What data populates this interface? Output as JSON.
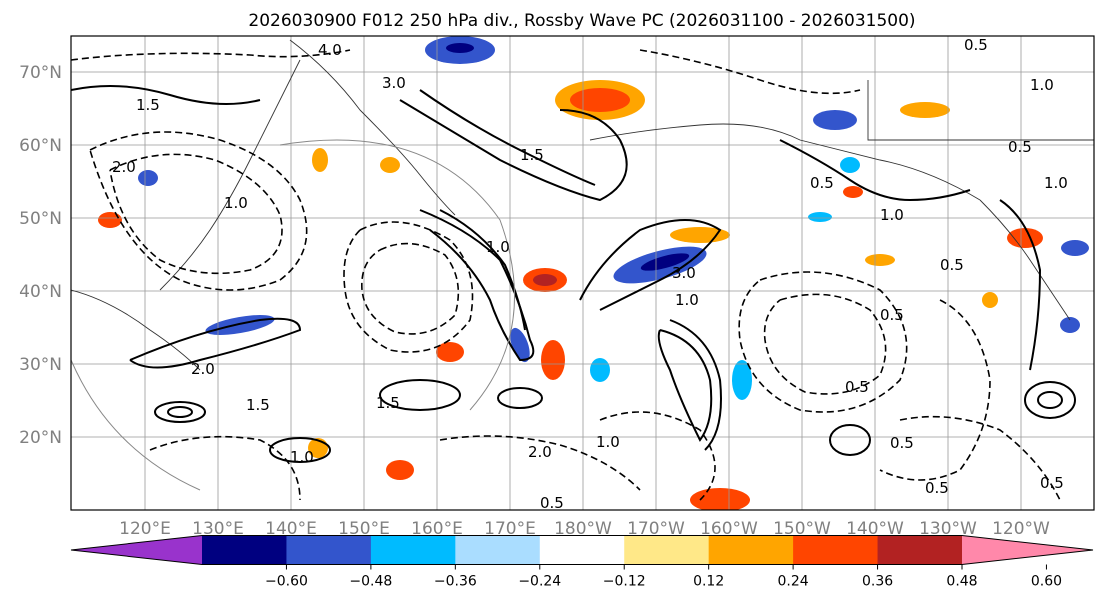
{
  "title": "2026030900 F012 250 hPa div., Rossby Wave PC (2026031100 - 2026031500)",
  "lat_labels": [
    "70°N",
    "60°N",
    "50°N",
    "40°N",
    "30°N",
    "20°N"
  ],
  "lon_labels": [
    "120°E",
    "130°E",
    "140°E",
    "150°E",
    "160°E",
    "170°E",
    "180°W",
    "170°W",
    "160°W",
    "150°W",
    "140°W",
    "130°W",
    "120°W"
  ],
  "colorbar": {
    "colors": [
      "#9933cc",
      "#000080",
      "#3355cc",
      "#00bbff",
      "#aaddff",
      "#ffffff",
      "#ffe888",
      "#ffa500",
      "#ff4500",
      "#b22222",
      "#ff88aa"
    ],
    "tick_labels": [
      "−0.60",
      "−0.48",
      "−0.36",
      "−0.24",
      "−0.12",
      "0.12",
      "0.24",
      "0.36",
      "0.48",
      "0.60"
    ]
  },
  "contour_labels": [
    "4.0",
    "3.0",
    "3.0",
    "1.0",
    "2.0",
    "1.5",
    "1.0",
    "0.5",
    "1.5",
    "2.0",
    "1.0",
    "0.5",
    "1.0",
    "0.5",
    "1.5",
    "1.0",
    "0.5",
    "0.5",
    "1.0",
    "0.5",
    "0.5",
    "2.0",
    "1.0",
    "0.5",
    "1.5",
    "1.0",
    "0.5",
    "0.5"
  ]
}
